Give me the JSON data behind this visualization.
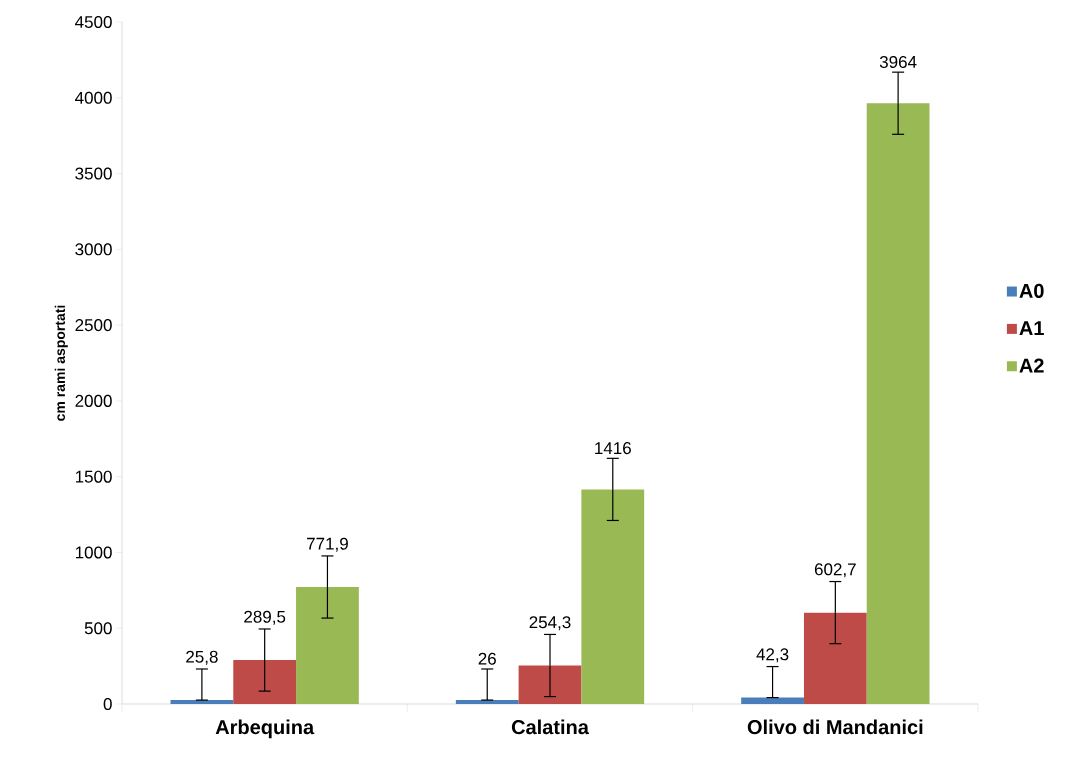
{
  "chart_data": {
    "type": "bar",
    "ylabel": "cm rami asportati",
    "categories": [
      "Arbequina",
      "Calatina",
      "Olivo di Mandanici"
    ],
    "series": [
      {
        "name": "A0",
        "color": "#4a7ebb",
        "values": [
          25.8,
          26,
          42.3
        ],
        "value_labels": [
          "25,8",
          "26",
          "42,3"
        ],
        "errors": [
          [
            25.8,
            231
          ],
          [
            26,
            231
          ],
          [
            42.3,
            247
          ]
        ]
      },
      {
        "name": "A1",
        "color": "#be4b48",
        "values": [
          289.5,
          254.3,
          602.7
        ],
        "value_labels": [
          "289,5",
          "254,3",
          "602,7"
        ],
        "errors": [
          [
            85,
            495
          ],
          [
            49,
            459
          ],
          [
            398,
            808
          ]
        ]
      },
      {
        "name": "A2",
        "color": "#98b954",
        "values": [
          771.9,
          1416,
          3964
        ],
        "value_labels": [
          "771,9",
          "1416",
          "3964"
        ],
        "errors": [
          [
            567,
            977
          ],
          [
            1211,
            1621
          ],
          [
            3759,
            4169
          ]
        ]
      }
    ],
    "ylim": [
      0,
      4500
    ],
    "yticks": [
      0,
      500,
      1000,
      1500,
      2000,
      2500,
      3000,
      3500,
      4000,
      4500
    ],
    "grid": false,
    "legend": "right"
  }
}
